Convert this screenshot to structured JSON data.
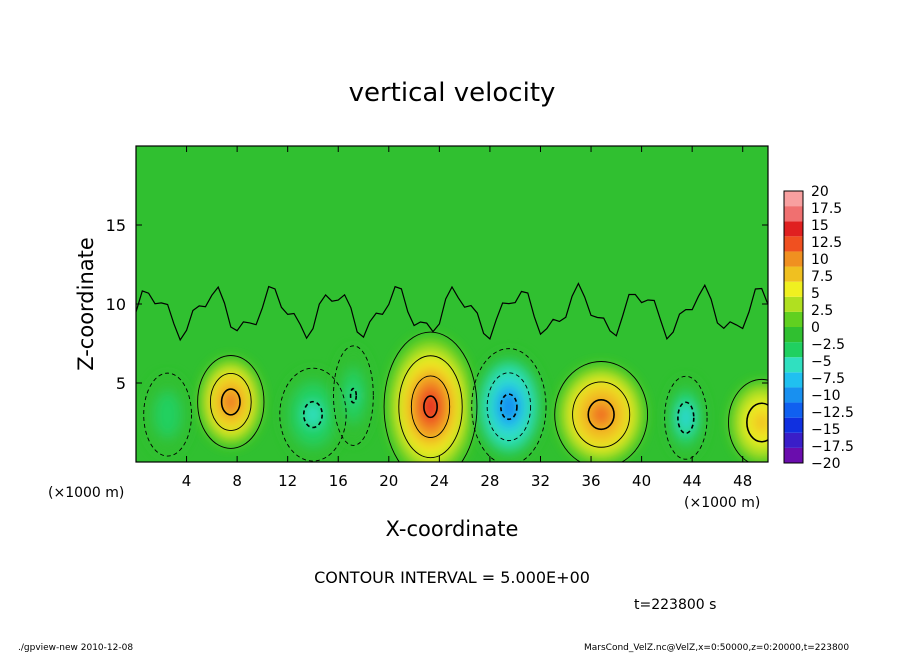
{
  "chart_data": {
    "type": "heatmap",
    "title": "vertical velocity",
    "xlabel": "X-coordinate",
    "ylabel": "Z-coordinate",
    "x_unit_left": "(×1000 m)",
    "x_unit_right": "(×1000 m)",
    "xlim": [
      0,
      50
    ],
    "ylim": [
      0,
      20
    ],
    "x_ticks": [
      4,
      8,
      12,
      16,
      20,
      24,
      28,
      32,
      36,
      40,
      44,
      48
    ],
    "y_ticks": [
      5,
      10,
      15
    ],
    "contour_interval_label": "CONTOUR INTERVAL = 5.000E+00",
    "time_label": "t=223800 s",
    "colorbar": {
      "min": -20,
      "max": 20,
      "labels": [
        "20",
        "17.5",
        "15",
        "12.5",
        "10",
        "7.5",
        "5",
        "2.5",
        "0",
        "−2.5",
        "−5",
        "−7.5",
        "−10",
        "−12.5",
        "−15",
        "−17.5",
        "−20"
      ],
      "colors": [
        "#6a0dad",
        "#3a1ec8",
        "#1030e0",
        "#1060f0",
        "#1890f0",
        "#20c0f0",
        "#30e0c0",
        "#20d060",
        "#30c030",
        "#60d020",
        "#b0e020",
        "#f0f020",
        "#f0c020",
        "#f09020",
        "#f05020",
        "#e02020",
        "#f07070",
        "#f8a0a0"
      ]
    },
    "features": [
      {
        "x": 7.5,
        "z": 3.8,
        "w": 2.5,
        "h": 2.8,
        "peak": 12
      },
      {
        "x": 23.3,
        "z": 3.5,
        "w": 3.5,
        "h": 4.5,
        "peak": 15
      },
      {
        "x": 36.8,
        "z": 3.0,
        "w": 3.5,
        "h": 3.2,
        "peak": 12
      },
      {
        "x": 49.5,
        "z": 2.5,
        "w": 2.5,
        "h": 2.6,
        "peak": 8
      },
      {
        "x": 14.0,
        "z": 3.0,
        "w": 2.5,
        "h": 2.8,
        "peak": -6
      },
      {
        "x": 17.2,
        "z": 4.2,
        "w": 1.5,
        "h": 3.0,
        "peak": -5
      },
      {
        "x": 29.5,
        "z": 3.5,
        "w": 2.8,
        "h": 3.5,
        "peak": -11
      },
      {
        "x": 43.5,
        "z": 2.8,
        "w": 1.6,
        "h": 2.5,
        "peak": -7
      },
      {
        "x": 2.5,
        "z": 3.0,
        "w": 1.8,
        "h": 2.5,
        "peak": -4
      }
    ]
  },
  "footer": {
    "left": "./gpview-new  2010-12-08",
    "right": "MarsCond_VelZ.nc@VelZ,x=0:50000,z=0:20000,t=223800"
  }
}
